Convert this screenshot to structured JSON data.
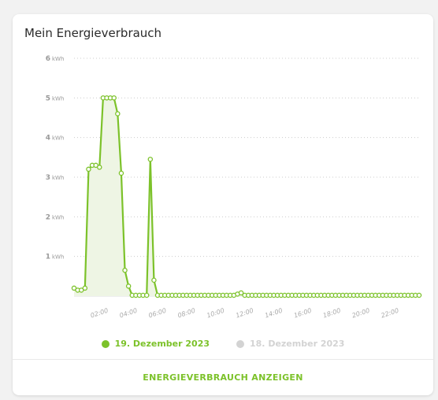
{
  "card": {
    "title": "Mein Energieverbrauch",
    "action_label": "ENERGIEVERBRAUCH ANZEIGEN"
  },
  "colors": {
    "accent": "#7cc22a",
    "inactive": "#d3d3d3",
    "fill": "#eef5e4",
    "grid": "#cccccc"
  },
  "legend": [
    {
      "label": "19. Dezember 2023",
      "color": "#7cc22a",
      "active": true
    },
    {
      "label": "18. Dezember 2023",
      "color": "#d3d3d3",
      "active": false
    }
  ],
  "chart_data": {
    "type": "line",
    "ylim": [
      0,
      6
    ],
    "y_ticks": [
      {
        "value": 1,
        "label": "1",
        "unit": "kWh"
      },
      {
        "value": 2,
        "label": "2",
        "unit": "kWh"
      },
      {
        "value": 3,
        "label": "3",
        "unit": "kWh"
      },
      {
        "value": 4,
        "label": "4",
        "unit": "kWh"
      },
      {
        "value": 5,
        "label": "5",
        "unit": "kWh"
      },
      {
        "value": 6,
        "label": "6",
        "unit": "kWh"
      }
    ],
    "x_ticks": [
      "02:00",
      "04:00",
      "06:00",
      "08:00",
      "10:00",
      "12:00",
      "14:00",
      "16:00",
      "18:00",
      "20:00",
      "22:00"
    ],
    "grid": true,
    "series": [
      {
        "name": "19. Dezember 2023",
        "values": [
          0.2,
          0.15,
          0.15,
          0.2,
          3.2,
          3.3,
          3.3,
          3.25,
          5.0,
          5.0,
          5.0,
          5.0,
          4.6,
          3.1,
          0.65,
          0.25,
          0.02,
          0.02,
          0.02,
          0.02,
          0.02,
          3.45,
          0.4,
          0.02,
          0.02,
          0.02,
          0.02,
          0.02,
          0.02,
          0.02,
          0.02,
          0.02,
          0.02,
          0.02,
          0.02,
          0.02,
          0.02,
          0.02,
          0.02,
          0.02,
          0.02,
          0.02,
          0.02,
          0.02,
          0.02,
          0.05,
          0.08,
          0.02,
          0.02,
          0.02,
          0.02,
          0.02,
          0.02,
          0.02,
          0.02,
          0.02,
          0.02,
          0.02,
          0.02,
          0.02,
          0.02,
          0.02,
          0.02,
          0.02,
          0.02,
          0.02,
          0.02,
          0.02,
          0.02,
          0.02,
          0.02,
          0.02,
          0.02,
          0.02,
          0.02,
          0.02,
          0.02,
          0.02,
          0.02,
          0.02,
          0.02,
          0.02,
          0.02,
          0.02,
          0.02,
          0.02,
          0.02,
          0.02,
          0.02,
          0.02,
          0.02,
          0.02,
          0.02,
          0.02,
          0.02,
          0.02
        ]
      }
    ],
    "x_points_per_hour": 4
  }
}
